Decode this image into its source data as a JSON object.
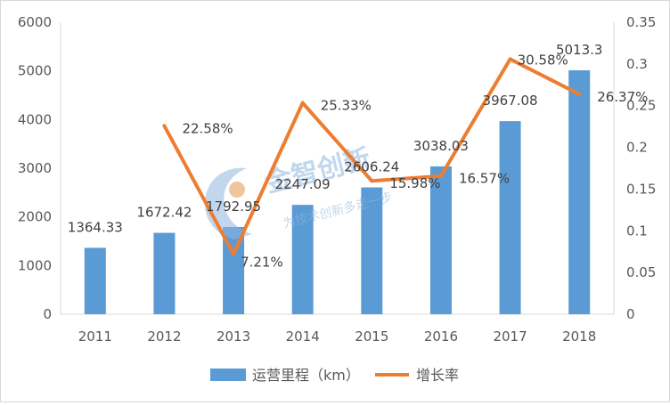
{
  "chart_data": {
    "type": "bar+line",
    "categories": [
      "2011",
      "2012",
      "2013",
      "2014",
      "2015",
      "2016",
      "2017",
      "2018"
    ],
    "series": [
      {
        "name": "运营里程（km）",
        "type": "bar",
        "axis": "left",
        "color": "#5b9bd5",
        "values": [
          1364.33,
          1672.42,
          1792.95,
          2247.09,
          2606.24,
          3038.03,
          3967.08,
          5013.3
        ],
        "labels": [
          "1364.33",
          "1672.42",
          "1792.95",
          "2247.09",
          "2606.24",
          "3038.03",
          "3967.08",
          "5013.3"
        ]
      },
      {
        "name": "增长率",
        "type": "line",
        "axis": "right",
        "color": "#ed7d31",
        "values": [
          null,
          0.2258,
          0.0721,
          0.2533,
          0.1598,
          0.1657,
          0.3058,
          0.2637
        ],
        "labels": [
          "",
          "22.58%",
          "7.21%",
          "25.33%",
          "15.98%",
          "16.57%",
          "30.58%",
          "26.37%"
        ]
      }
    ],
    "y_left": {
      "min": 0,
      "max": 6000,
      "ticks": [
        "0",
        "1000",
        "2000",
        "3000",
        "4000",
        "5000",
        "6000"
      ]
    },
    "y_right": {
      "min": 0,
      "max": 0.35,
      "ticks": [
        "0",
        "0.05",
        "0.1",
        "0.15",
        "0.2",
        "0.25",
        "0.3",
        "0.35"
      ]
    },
    "grid": false,
    "legend_position": "bottom"
  },
  "watermark": {
    "title": "金智创新",
    "subtitle": "为技术创新多走一步",
    "icon": "bulb-logo-icon"
  }
}
